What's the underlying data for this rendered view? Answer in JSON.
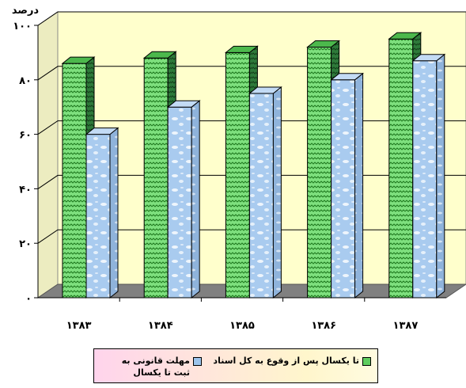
{
  "chart_data": {
    "type": "bar",
    "ylabel": "درصد",
    "categories": [
      "۱۳۸۳",
      "۱۳۸۴",
      "۱۳۸۵",
      "۱۳۸۶",
      "۱۳۸۷"
    ],
    "ylim": [
      0,
      100
    ],
    "yticks": [
      {
        "value": 0,
        "label": "۰"
      },
      {
        "value": 20,
        "label": "۲۰"
      },
      {
        "value": 40,
        "label": "۴۰"
      },
      {
        "value": 60,
        "label": "۶۰"
      },
      {
        "value": 80,
        "label": "۸۰"
      },
      {
        "value": 100,
        "label": "۱۰۰"
      }
    ],
    "series": [
      {
        "name": "تا یکسال پس از وقوع به کل اسناد",
        "values": [
          86,
          88,
          90,
          92,
          95
        ],
        "color": "#5fce5f"
      },
      {
        "name": "مهلت قانونی به ثبت تا یکسال",
        "values": [
          60,
          70,
          75,
          80,
          87
        ],
        "color": "#9cc4ec"
      }
    ],
    "grid": true,
    "legend_position": "bottom",
    "style": "3d-bar"
  },
  "legend": [
    {
      "label": "تا یکسال پس از وقوع به کل اسناد",
      "color": "#5fce5f"
    },
    {
      "label": "مهلت قانونی به ثبت تا یکسال",
      "color": "#9cc4ec"
    }
  ]
}
